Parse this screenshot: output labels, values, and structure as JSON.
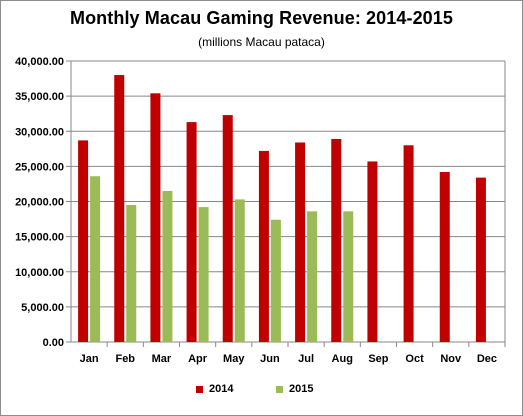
{
  "chart_data": {
    "type": "bar",
    "title": "Monthly Macau Gaming Revenue: 2014-2015",
    "subtitle": "(millions Macau pataca)",
    "categories": [
      "Jan",
      "Feb",
      "Mar",
      "Apr",
      "May",
      "Jun",
      "Jul",
      "Aug",
      "Sep",
      "Oct",
      "Nov",
      "Dec"
    ],
    "series": [
      {
        "name": "2014",
        "color": "#c00000",
        "values": [
          28700,
          38000,
          35400,
          31300,
          32300,
          27200,
          28400,
          28900,
          25700,
          28000,
          24200,
          23400
        ]
      },
      {
        "name": "2015",
        "color": "#9bbb59",
        "values": [
          23600,
          19500,
          21500,
          19200,
          20300,
          17400,
          18600,
          18600,
          null,
          null,
          null,
          null
        ]
      }
    ],
    "ylim": [
      0,
      40000
    ],
    "yticks": [
      "0.00",
      "5,000.00",
      "10,000.00",
      "15,000.00",
      "20,000.00",
      "25,000.00",
      "30,000.00",
      "35,000.00",
      "40,000.00"
    ],
    "grid": true,
    "legend": "bottom"
  }
}
